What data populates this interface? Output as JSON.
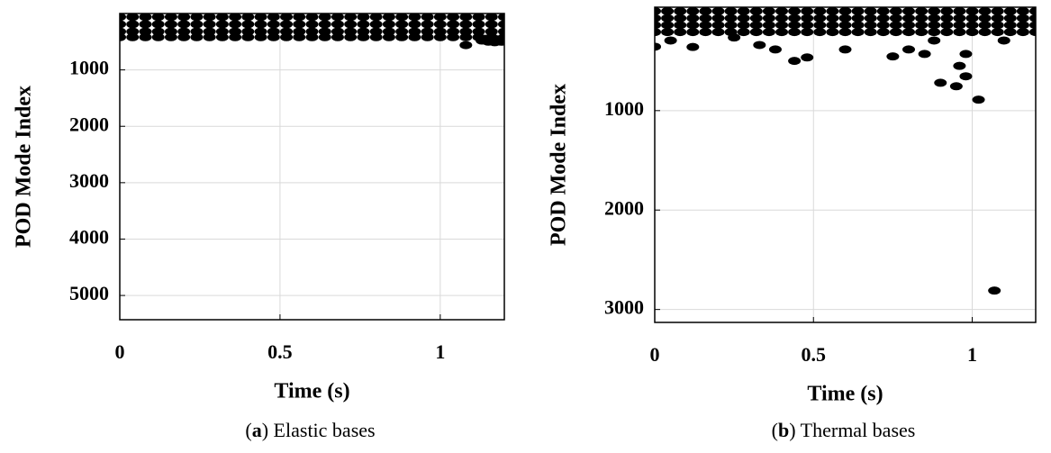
{
  "chart_data": [
    {
      "type": "scatter",
      "y_label": "POD Mode Index",
      "x_label": "Time (s)",
      "caption": "(a) Elastic bases",
      "xlim": [
        0,
        1.2
      ],
      "ylim": [
        0,
        5430
      ],
      "y_inverted": true,
      "grid": true,
      "xticks": [
        0,
        0.5,
        1
      ],
      "yticks": [
        1000,
        2000,
        3000,
        4000,
        5000
      ],
      "x": [
        0,
        0.04,
        0.08,
        0.12,
        0.16,
        0.2,
        0.24,
        0.28,
        0.32,
        0.36,
        0.4,
        0.44,
        0.48,
        0.52,
        0.56,
        0.6,
        0.64,
        0.68,
        0.72,
        0.76,
        0.8,
        0.84,
        0.88,
        0.92,
        0.96,
        1,
        1.04,
        1.08,
        1.12,
        1.16,
        1.2
      ],
      "series": [
        {
          "color": "#000000",
          "values": [
            60,
            60,
            60,
            60,
            60,
            60,
            60,
            60,
            60,
            60,
            60,
            60,
            60,
            60,
            60,
            60,
            60,
            60,
            60,
            60,
            60,
            60,
            60,
            60,
            60,
            60,
            60,
            60,
            60,
            60,
            60
          ]
        },
        {
          "color": "#000000",
          "values": [
            190,
            190,
            190,
            190,
            190,
            190,
            190,
            190,
            190,
            190,
            190,
            190,
            190,
            190,
            190,
            190,
            190,
            190,
            190,
            190,
            190,
            190,
            190,
            190,
            190,
            190,
            190,
            190,
            190,
            190,
            190
          ]
        },
        {
          "color": "#000000",
          "values": [
            320,
            320,
            320,
            320,
            320,
            320,
            320,
            320,
            320,
            320,
            320,
            320,
            320,
            320,
            320,
            320,
            320,
            320,
            320,
            320,
            320,
            320,
            320,
            320,
            320,
            320,
            320,
            320,
            320,
            320,
            320
          ]
        },
        {
          "color": "#000000",
          "values": [
            420,
            420,
            420,
            420,
            420,
            420,
            420,
            420,
            420,
            420,
            420,
            420,
            420,
            420,
            420,
            420,
            420,
            420,
            420,
            420,
            420,
            420,
            420,
            420,
            420,
            420,
            420,
            420,
            420,
            420,
            420
          ]
        },
        {
          "color": "#000000",
          "x": [
            1.08,
            1.13,
            1.15,
            1.17,
            1.19,
            1.2,
            1.14,
            1.18
          ],
          "values": [
            560,
            480,
            500,
            510,
            500,
            490,
            450,
            460
          ]
        }
      ]
    },
    {
      "type": "scatter",
      "y_label": "POD Mode Index",
      "x_label": "Time (s)",
      "caption": "(b) Thermal bases",
      "xlim": [
        0,
        1.2
      ],
      "ylim": [
        -40,
        3130
      ],
      "y_inverted": true,
      "grid": true,
      "xticks": [
        0,
        0.5,
        1
      ],
      "yticks": [
        1000,
        2000,
        3000
      ],
      "x": [
        0,
        0.04,
        0.08,
        0.12,
        0.16,
        0.2,
        0.24,
        0.28,
        0.32,
        0.36,
        0.4,
        0.44,
        0.48,
        0.52,
        0.56,
        0.6,
        0.64,
        0.68,
        0.72,
        0.76,
        0.8,
        0.84,
        0.88,
        0.92,
        0.96,
        1,
        1.04,
        1.08,
        1.12,
        1.16,
        1.2
      ],
      "series": [
        {
          "color": "#000000",
          "values": [
            0,
            0,
            0,
            0,
            0,
            0,
            0,
            0,
            0,
            0,
            0,
            0,
            0,
            0,
            0,
            0,
            0,
            0,
            0,
            0,
            0,
            0,
            0,
            0,
            0,
            0,
            0,
            0,
            0,
            0,
            0
          ]
        },
        {
          "color": "#000000",
          "values": [
            70,
            70,
            70,
            70,
            70,
            70,
            70,
            70,
            70,
            70,
            70,
            70,
            70,
            70,
            70,
            70,
            70,
            70,
            70,
            70,
            70,
            70,
            70,
            70,
            70,
            70,
            70,
            70,
            70,
            70,
            70
          ]
        },
        {
          "color": "#000000",
          "values": [
            140,
            140,
            140,
            140,
            140,
            140,
            140,
            140,
            140,
            140,
            140,
            140,
            140,
            140,
            140,
            140,
            140,
            140,
            140,
            140,
            140,
            140,
            140,
            140,
            140,
            140,
            140,
            140,
            140,
            140,
            140
          ]
        },
        {
          "color": "#000000",
          "values": [
            210,
            210,
            210,
            210,
            210,
            210,
            210,
            210,
            210,
            210,
            210,
            210,
            210,
            210,
            210,
            210,
            210,
            210,
            210,
            210,
            210,
            210,
            210,
            210,
            210,
            210,
            210,
            210,
            210,
            210,
            210
          ]
        },
        {
          "color": "#000000",
          "x": [
            0,
            0.05,
            0.12,
            0.25,
            0.33,
            0.38,
            0.44,
            0.48,
            0.6,
            0.75,
            0.8,
            0.85,
            0.88,
            0.9,
            0.95,
            0.96,
            0.98,
            0.98,
            1.02,
            1.07,
            1.1
          ],
          "values": [
            357,
            295,
            360,
            265,
            340,
            385,
            500,
            465,
            385,
            455,
            385,
            430,
            295,
            720,
            755,
            550,
            655,
            430,
            890,
            2810,
            295
          ]
        }
      ]
    }
  ]
}
